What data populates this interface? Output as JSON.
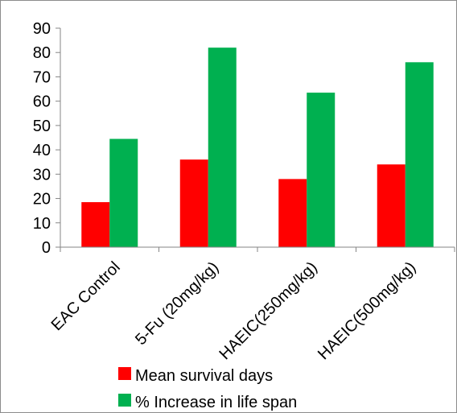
{
  "chart_data": {
    "type": "bar",
    "title": "",
    "xlabel": "",
    "ylabel": "",
    "categories": [
      "EAC Control",
      "5-Fu (20mg/kg)",
      "HAEIC(250mg/kg)",
      "HAEIC(500mg/kg)"
    ],
    "series": [
      {
        "name": "Mean survival days",
        "color": "#ff0000",
        "values": [
          18.5,
          36.0,
          28.0,
          34.0
        ]
      },
      {
        "name": "% Increase in life span",
        "color": "#00b050",
        "values": [
          44.5,
          82.0,
          63.5,
          76.0
        ]
      }
    ],
    "ylim": [
      0,
      90
    ],
    "yticks": [
      0,
      10,
      20,
      30,
      40,
      50,
      60,
      70,
      80,
      90
    ],
    "grid": false,
    "legend_position": "bottom"
  }
}
